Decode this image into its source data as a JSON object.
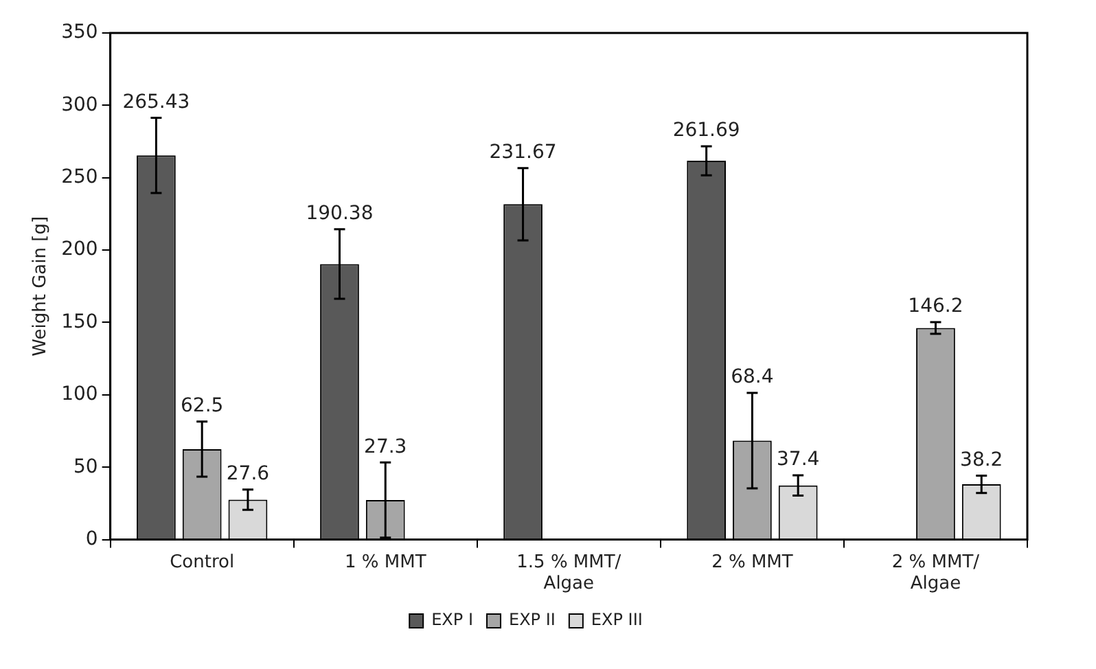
{
  "chart_data": {
    "type": "bar",
    "ylabel": "Weight Gain [g]",
    "categories": [
      "Control",
      "1 % MMT",
      "1.5 % MMT/\nAlgae",
      "2 % MMT",
      "2 % MMT/\nAlgae"
    ],
    "series": [
      {
        "name": "EXP I",
        "color": "#595959",
        "values": [
          265.43,
          190.38,
          231.67,
          261.69,
          null
        ],
        "errors": [
          26,
          24,
          25,
          10,
          null
        ]
      },
      {
        "name": "EXP II",
        "color": "#a6a6a6",
        "values": [
          62.5,
          27.3,
          null,
          68.4,
          146.2
        ],
        "errors": [
          19,
          26,
          null,
          33,
          4
        ]
      },
      {
        "name": "EXP III",
        "color": "#d9d9d9",
        "values": [
          27.6,
          null,
          null,
          37.4,
          38.2
        ],
        "errors": [
          7,
          null,
          null,
          7,
          6
        ]
      }
    ],
    "ylim": [
      0,
      350
    ],
    "yticks": [
      0,
      50,
      100,
      150,
      200,
      250,
      300,
      350
    ],
    "grid": false,
    "legend": "bottom",
    "data_labels": true
  }
}
